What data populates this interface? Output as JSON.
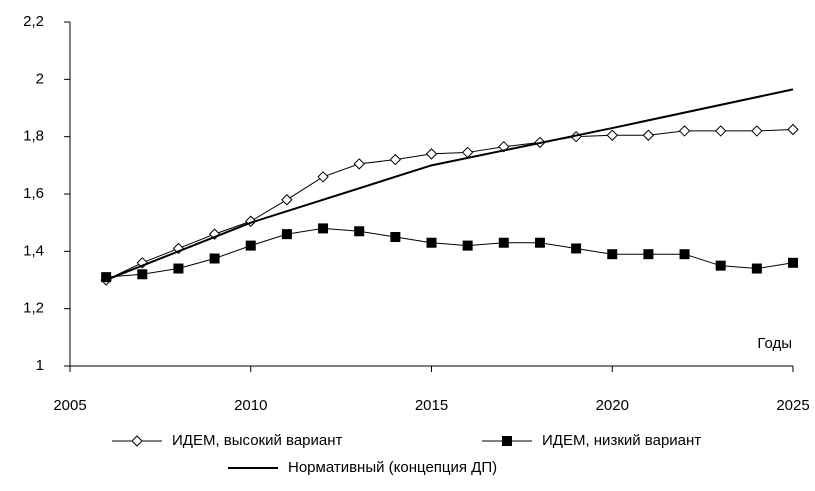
{
  "chart_data": {
    "type": "line",
    "axis_label": "Годы",
    "xlim": [
      2005,
      2025
    ],
    "xticks": [
      2005,
      2010,
      2015,
      2020,
      2025
    ],
    "ylim": [
      1,
      2.2
    ],
    "yticks": [
      1,
      {
        "value": 1.2,
        "label": "1,2"
      },
      {
        "value": 1.4,
        "label": "1,4"
      },
      {
        "value": 1.6,
        "label": "1,6"
      },
      {
        "value": 1.8,
        "label": "1,8"
      },
      2,
      {
        "value": 2.2,
        "label": "2,2"
      }
    ],
    "series": [
      {
        "name": "ИДЕМ, высокий вариант",
        "color": "#000000",
        "marker": "diamond",
        "x": [
          2006,
          2007,
          2008,
          2009,
          2010,
          2011,
          2012,
          2013,
          2014,
          2015,
          2016,
          2017,
          2018,
          2019,
          2020,
          2021,
          2022,
          2023,
          2024,
          2025
        ],
        "values": [
          1.3,
          1.36,
          1.41,
          1.46,
          1.505,
          1.58,
          1.66,
          1.705,
          1.72,
          1.74,
          1.745,
          1.765,
          1.78,
          1.8,
          1.805,
          1.805,
          1.82,
          1.82,
          1.82,
          1.825
        ]
      },
      {
        "name": "ИДЕМ, низкий вариант",
        "color": "#000000",
        "marker": "square",
        "x": [
          2006,
          2007,
          2008,
          2009,
          2010,
          2011,
          2012,
          2013,
          2014,
          2015,
          2016,
          2017,
          2018,
          2019,
          2020,
          2021,
          2022,
          2023,
          2024,
          2025
        ],
        "values": [
          1.31,
          1.32,
          1.34,
          1.375,
          1.42,
          1.46,
          1.48,
          1.47,
          1.45,
          1.43,
          1.42,
          1.43,
          1.43,
          1.41,
          1.39,
          1.39,
          1.39,
          1.35,
          1.34,
          1.36
        ]
      },
      {
        "name": "Нормативный (концепция ДП)",
        "color": "#000000",
        "marker": "none",
        "x": [
          2006,
          2010,
          2015,
          2020,
          2025
        ],
        "values": [
          1.3,
          1.5,
          1.7,
          1.83,
          1.965
        ]
      }
    ]
  }
}
